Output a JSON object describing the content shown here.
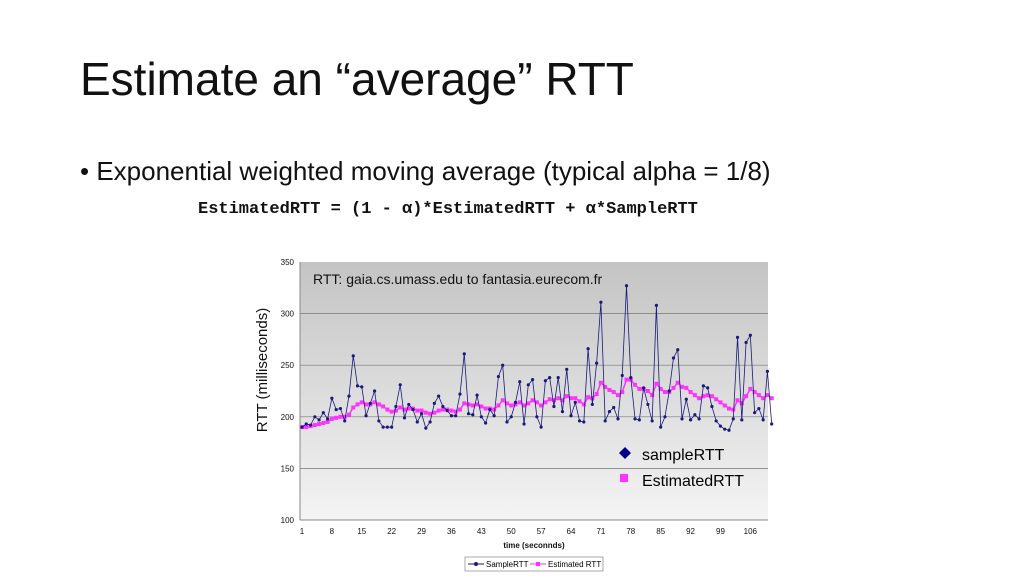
{
  "slide": {
    "title": "Estimate an “average” RTT",
    "bullet": "• Exponential weighted moving average (typical alpha = 1/8)",
    "formula": "EstimatedRTT = (1 - α)*EstimatedRTT + α*SampleRTT"
  },
  "chart_data": {
    "type": "line",
    "title": "RTT: gaia.cs.umass.edu to fantasia.eurecom.fr",
    "xlabel": "time (seconnds)",
    "ylabel": "RTT (milliseconds)",
    "ylim": [
      100,
      350
    ],
    "yticks": [
      100,
      150,
      200,
      250,
      300,
      350
    ],
    "xticks": [
      1,
      8,
      15,
      22,
      29,
      36,
      43,
      50,
      57,
      64,
      71,
      78,
      85,
      92,
      99,
      106
    ],
    "grid": true,
    "colors": {
      "sample": "#1a1a7a",
      "estimated": "#ff33ff"
    },
    "legend_inner": {
      "placement": "right",
      "entries": [
        "sampleRTT",
        "EstimatedRTT"
      ]
    },
    "legend_bottom": {
      "placement": "bottom",
      "entries": [
        "SampleRTT",
        "Estimated RTT"
      ]
    },
    "series": [
      {
        "name": "SampleRTT",
        "values": [
          190,
          193,
          192,
          200,
          197,
          204,
          198,
          218,
          207,
          208,
          196,
          220,
          259,
          230,
          229,
          201,
          213,
          225,
          196,
          190,
          190,
          190,
          210,
          231,
          199,
          212,
          207,
          195,
          203,
          189,
          195,
          213,
          220,
          210,
          206,
          201,
          201,
          222,
          261,
          203,
          202,
          221,
          200,
          194,
          207,
          201,
          239,
          250,
          195,
          200,
          214,
          234,
          193,
          231,
          236,
          200,
          190,
          235,
          238,
          210,
          238,
          205,
          246,
          201,
          214,
          196,
          195,
          266,
          212,
          252,
          311,
          196,
          205,
          209,
          198,
          240,
          327,
          238,
          198,
          197,
          228,
          212,
          196,
          308,
          190,
          200,
          225,
          257,
          265,
          198,
          217,
          197,
          202,
          198,
          230,
          228,
          210,
          196,
          191,
          188,
          187,
          198,
          277,
          197,
          272,
          279,
          204,
          208,
          197,
          244,
          193
        ]
      },
      {
        "name": "Estimated RTT",
        "values": [
          190,
          190,
          191,
          192,
          193,
          194,
          195,
          198,
          199,
          200,
          200,
          202,
          209,
          212,
          214,
          212,
          212,
          214,
          212,
          210,
          207,
          205,
          206,
          209,
          207,
          208,
          208,
          206,
          206,
          204,
          203,
          204,
          206,
          207,
          207,
          206,
          205,
          207,
          213,
          212,
          211,
          212,
          210,
          208,
          208,
          207,
          211,
          216,
          213,
          211,
          212,
          214,
          211,
          213,
          216,
          214,
          211,
          214,
          217,
          216,
          218,
          216,
          220,
          218,
          218,
          215,
          212,
          219,
          218,
          222,
          233,
          229,
          226,
          224,
          221,
          224,
          236,
          236,
          231,
          227,
          227,
          225,
          221,
          232,
          227,
          224,
          224,
          228,
          233,
          229,
          228,
          224,
          221,
          218,
          220,
          221,
          220,
          217,
          214,
          211,
          208,
          207,
          216,
          213,
          220,
          227,
          224,
          221,
          218,
          221,
          218
        ]
      }
    ]
  }
}
